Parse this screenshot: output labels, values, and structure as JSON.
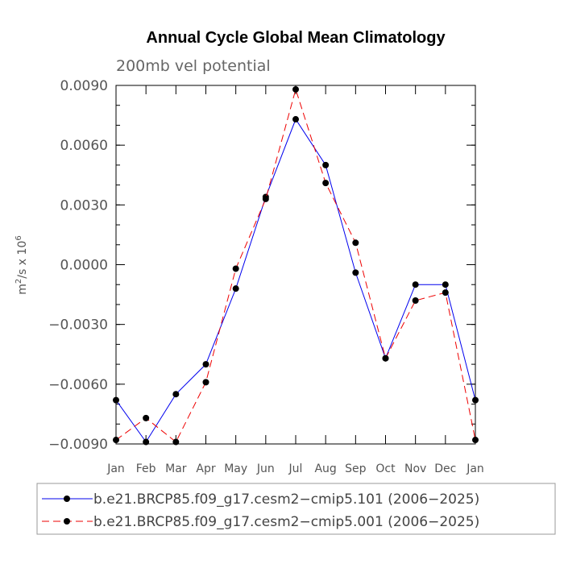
{
  "chart_data": {
    "type": "line",
    "title": "Annual Cycle Global Mean Climatology",
    "subtitle": "200mb vel potential",
    "ylabel": "m",
    "ylabel_sup": "2",
    "ylabel_mid": "/s x 10",
    "ylabel_sup2": "6",
    "xlabel": "",
    "categories": [
      "Jan",
      "Feb",
      "Mar",
      "Apr",
      "May",
      "Jun",
      "Jul",
      "Aug",
      "Sep",
      "Oct",
      "Nov",
      "Dec",
      "Jan"
    ],
    "ylim": [
      -0.009,
      0.009
    ],
    "yticks": [
      -0.009,
      -0.006,
      -0.003,
      0.0,
      0.003,
      0.006,
      0.009
    ],
    "ytick_labels": [
      "−0.0090",
      "−0.0060",
      "−0.0030",
      "0.0000",
      "0.0030",
      "0.0060",
      "0.0090"
    ],
    "series": [
      {
        "name": "b.e21.BRCP85.f09_g17.cesm2−cmip5.101 (2006−2025)",
        "color": "#0000ee",
        "dash": "solid",
        "values": [
          -0.0068,
          -0.0089,
          -0.0065,
          -0.005,
          -0.0012,
          0.0034,
          0.0073,
          0.005,
          -0.0004,
          -0.0047,
          -0.001,
          -0.001,
          -0.0068
        ]
      },
      {
        "name": "b.e21.BRCP85.f09_g17.cesm2−cmip5.001 (2006−2025)",
        "color": "#ee0000",
        "dash": "dashed",
        "values": [
          -0.0088,
          -0.0077,
          -0.0089,
          -0.0059,
          -0.0002,
          0.0033,
          0.0088,
          0.0041,
          0.0011,
          -0.0047,
          -0.0018,
          -0.0014,
          -0.0088
        ]
      }
    ],
    "legend_position": "bottom"
  }
}
